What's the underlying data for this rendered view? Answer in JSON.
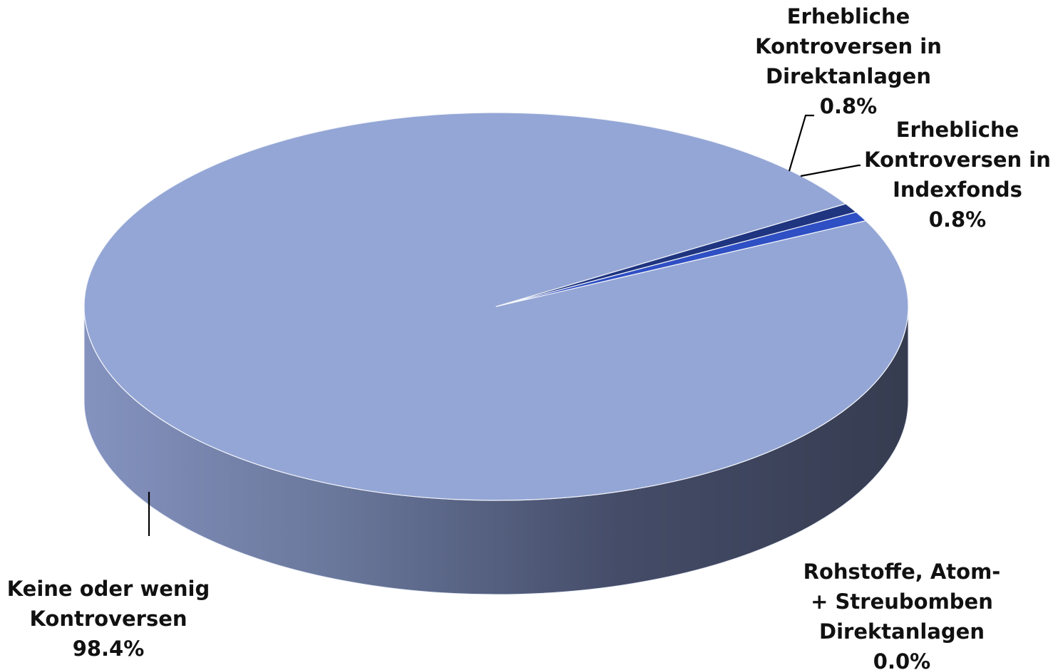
{
  "chart_data": {
    "type": "pie",
    "style": "3d",
    "labels": [
      "Keine oder wenig Kontroversen",
      "Erhebliche Kontroversen in Direktanlagen",
      "Erhebliche Kontroversen in Indexfonds",
      "Rohstoffe, Atom- + Streubomben Direktanlagen"
    ],
    "values": [
      98.4,
      0.8,
      0.8,
      0.0
    ],
    "value_labels": [
      "98.4%",
      "0.8%",
      "0.8%",
      "0.0%"
    ],
    "label_lines": [
      [
        "Keine oder wenig",
        "Kontroversen"
      ],
      [
        "Erhebliche",
        "Kontroversen in",
        "Direktanlagen"
      ],
      [
        "Erhebliche",
        "Kontroversen in",
        "Indexfonds"
      ],
      [
        "Rohstoffe, Atom-",
        "+ Streubomben",
        "Direktanlagen"
      ]
    ],
    "colors": [
      "#94a6d5",
      "#1f3580",
      "#2f4fc4",
      "#7f7f7f"
    ],
    "legend": "none"
  }
}
